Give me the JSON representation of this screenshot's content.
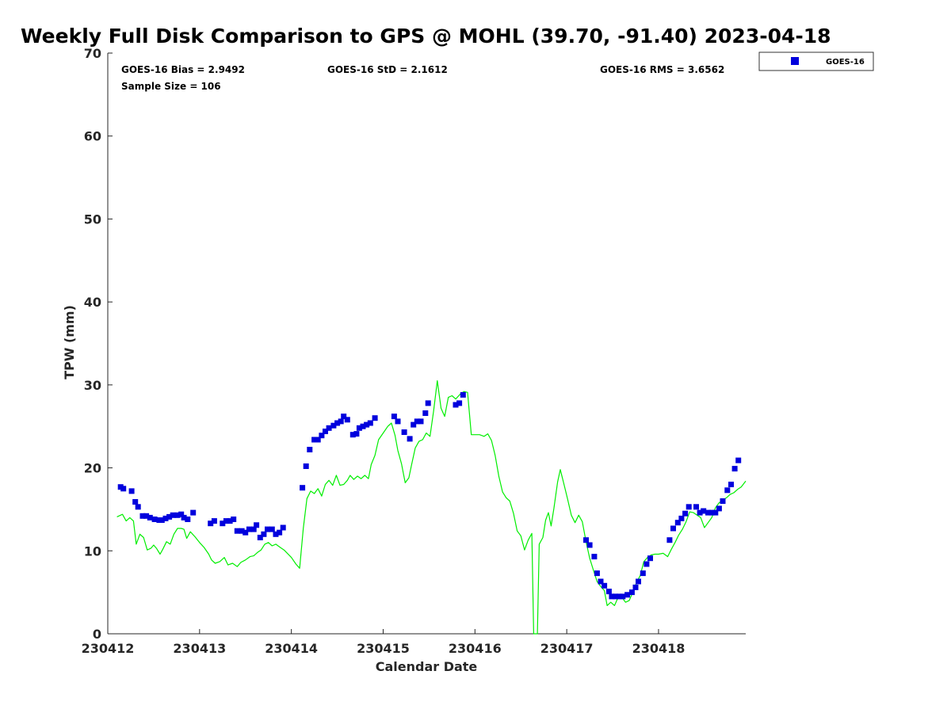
{
  "chart_data": {
    "type": "scatter",
    "title": "Weekly Full Disk Comparison to GPS @ MOHL (39.70, -91.40) 2023-04-18",
    "xlabel": "Calendar Date",
    "ylabel": "TPW (mm)",
    "xlim": [
      230412.0,
      230418.95
    ],
    "ylim": [
      0,
      70
    ],
    "x_ticks": [
      230412,
      230413,
      230414,
      230415,
      230416,
      230417,
      230418
    ],
    "x_tick_labels": [
      "230412",
      "230413",
      "230414",
      "230415",
      "230416",
      "230417",
      "230418"
    ],
    "y_ticks": [
      0,
      10,
      20,
      30,
      40,
      50,
      60,
      70
    ],
    "y_tick_labels": [
      "0",
      "10",
      "20",
      "30",
      "40",
      "50",
      "60",
      "70"
    ],
    "grid": false,
    "legend_position": "top-right",
    "stats": {
      "bias": "GOES-16 Bias = 2.9492",
      "std": "GOES-16 StD = 2.1612",
      "rms": "GOES-16 RMS = 3.6562",
      "sample": "Sample Size = 106"
    },
    "series": [
      {
        "name": "GOES-16",
        "marker": "square",
        "color": "#0000dd",
        "points": [
          [
            230412.14,
            17.7
          ],
          [
            230412.17,
            17.5
          ],
          [
            230412.26,
            17.2
          ],
          [
            230412.3,
            15.9
          ],
          [
            230412.33,
            15.3
          ],
          [
            230412.38,
            14.2
          ],
          [
            230412.42,
            14.2
          ],
          [
            230412.46,
            14.0
          ],
          [
            230412.51,
            13.8
          ],
          [
            230412.56,
            13.7
          ],
          [
            230412.59,
            13.7
          ],
          [
            230412.63,
            13.9
          ],
          [
            230412.67,
            14.1
          ],
          [
            230412.71,
            14.3
          ],
          [
            230412.76,
            14.3
          ],
          [
            230412.8,
            14.4
          ],
          [
            230412.83,
            14.0
          ],
          [
            230412.87,
            13.8
          ],
          [
            230412.93,
            14.6
          ],
          [
            230413.12,
            13.3
          ],
          [
            230413.16,
            13.6
          ],
          [
            230413.25,
            13.3
          ],
          [
            230413.29,
            13.6
          ],
          [
            230413.33,
            13.6
          ],
          [
            230413.37,
            13.8
          ],
          [
            230413.41,
            12.4
          ],
          [
            230413.46,
            12.4
          ],
          [
            230413.5,
            12.2
          ],
          [
            230413.54,
            12.6
          ],
          [
            230413.59,
            12.6
          ],
          [
            230413.62,
            13.1
          ],
          [
            230413.66,
            11.6
          ],
          [
            230413.7,
            12.0
          ],
          [
            230413.74,
            12.6
          ],
          [
            230413.79,
            12.6
          ],
          [
            230413.83,
            12.0
          ],
          [
            230413.87,
            12.2
          ],
          [
            230413.91,
            12.8
          ],
          [
            230414.12,
            17.6
          ],
          [
            230414.16,
            20.2
          ],
          [
            230414.2,
            22.2
          ],
          [
            230414.25,
            23.4
          ],
          [
            230414.29,
            23.4
          ],
          [
            230414.33,
            23.9
          ],
          [
            230414.37,
            24.4
          ],
          [
            230414.41,
            24.8
          ],
          [
            230414.46,
            25.1
          ],
          [
            230414.5,
            25.4
          ],
          [
            230414.54,
            25.6
          ],
          [
            230414.57,
            26.2
          ],
          [
            230414.61,
            25.8
          ],
          [
            230414.67,
            24.0
          ],
          [
            230414.71,
            24.1
          ],
          [
            230414.74,
            24.8
          ],
          [
            230414.78,
            25.0
          ],
          [
            230414.82,
            25.2
          ],
          [
            230414.86,
            25.4
          ],
          [
            230414.91,
            26.0
          ],
          [
            230415.12,
            26.2
          ],
          [
            230415.16,
            25.6
          ],
          [
            230415.23,
            24.3
          ],
          [
            230415.29,
            23.5
          ],
          [
            230415.33,
            25.2
          ],
          [
            230415.37,
            25.6
          ],
          [
            230415.41,
            25.6
          ],
          [
            230415.46,
            26.6
          ],
          [
            230415.49,
            27.8
          ],
          [
            230415.79,
            27.6
          ],
          [
            230415.83,
            27.8
          ],
          [
            230415.87,
            28.8
          ],
          [
            230417.21,
            11.3
          ],
          [
            230417.25,
            10.7
          ],
          [
            230417.3,
            9.3
          ],
          [
            230417.33,
            7.3
          ],
          [
            230417.37,
            6.3
          ],
          [
            230417.41,
            5.8
          ],
          [
            230417.46,
            5.1
          ],
          [
            230417.49,
            4.5
          ],
          [
            230417.53,
            4.5
          ],
          [
            230417.57,
            4.5
          ],
          [
            230417.61,
            4.5
          ],
          [
            230417.66,
            4.7
          ],
          [
            230417.71,
            5.0
          ],
          [
            230417.75,
            5.6
          ],
          [
            230417.78,
            6.3
          ],
          [
            230417.83,
            7.3
          ],
          [
            230417.87,
            8.4
          ],
          [
            230417.91,
            9.1
          ],
          [
            230418.12,
            11.3
          ],
          [
            230418.16,
            12.7
          ],
          [
            230418.21,
            13.4
          ],
          [
            230418.25,
            13.9
          ],
          [
            230418.29,
            14.5
          ],
          [
            230418.33,
            15.3
          ],
          [
            230418.41,
            15.3
          ],
          [
            230418.45,
            14.6
          ],
          [
            230418.49,
            14.8
          ],
          [
            230418.54,
            14.6
          ],
          [
            230418.58,
            14.6
          ],
          [
            230418.62,
            14.6
          ],
          [
            230418.66,
            15.1
          ],
          [
            230418.7,
            16.0
          ],
          [
            230418.75,
            17.3
          ],
          [
            230418.79,
            18.0
          ],
          [
            230418.83,
            19.9
          ],
          [
            230418.87,
            20.9
          ]
        ]
      },
      {
        "type": "line",
        "color": "#00ee00",
        "points": [
          [
            230412.1,
            14.1
          ],
          [
            230412.16,
            14.4
          ],
          [
            230412.2,
            13.6
          ],
          [
            230412.24,
            14.0
          ],
          [
            230412.28,
            13.6
          ],
          [
            230412.31,
            10.8
          ],
          [
            230412.35,
            12.0
          ],
          [
            230412.39,
            11.6
          ],
          [
            230412.43,
            10.1
          ],
          [
            230412.47,
            10.3
          ],
          [
            230412.5,
            10.7
          ],
          [
            230412.53,
            10.3
          ],
          [
            230412.57,
            9.6
          ],
          [
            230412.6,
            10.2
          ],
          [
            230412.64,
            11.1
          ],
          [
            230412.68,
            10.8
          ],
          [
            230412.72,
            12.0
          ],
          [
            230412.76,
            12.7
          ],
          [
            230412.8,
            12.7
          ],
          [
            230412.83,
            12.6
          ],
          [
            230412.86,
            11.5
          ],
          [
            230412.9,
            12.3
          ],
          [
            230412.95,
            11.7
          ],
          [
            230413.0,
            11.0
          ],
          [
            230413.05,
            10.4
          ],
          [
            230413.1,
            9.6
          ],
          [
            230413.13,
            8.9
          ],
          [
            230413.17,
            8.5
          ],
          [
            230413.22,
            8.7
          ],
          [
            230413.27,
            9.2
          ],
          [
            230413.31,
            8.3
          ],
          [
            230413.36,
            8.5
          ],
          [
            230413.41,
            8.1
          ],
          [
            230413.45,
            8.6
          ],
          [
            230413.5,
            8.9
          ],
          [
            230413.55,
            9.3
          ],
          [
            230413.59,
            9.4
          ],
          [
            230413.63,
            9.8
          ],
          [
            230413.67,
            10.1
          ],
          [
            230413.71,
            10.8
          ],
          [
            230413.75,
            11.0
          ],
          [
            230413.79,
            10.6
          ],
          [
            230413.83,
            10.8
          ],
          [
            230413.88,
            10.4
          ],
          [
            230413.92,
            10.1
          ],
          [
            230414.0,
            9.2
          ],
          [
            230414.05,
            8.4
          ],
          [
            230414.09,
            7.9
          ],
          [
            230414.13,
            12.7
          ],
          [
            230414.17,
            16.3
          ],
          [
            230414.21,
            17.2
          ],
          [
            230414.25,
            16.9
          ],
          [
            230414.29,
            17.5
          ],
          [
            230414.33,
            16.6
          ],
          [
            230414.37,
            18.0
          ],
          [
            230414.41,
            18.5
          ],
          [
            230414.45,
            17.9
          ],
          [
            230414.49,
            19.1
          ],
          [
            230414.53,
            17.9
          ],
          [
            230414.57,
            18.0
          ],
          [
            230414.61,
            18.5
          ],
          [
            230414.64,
            19.1
          ],
          [
            230414.68,
            18.6
          ],
          [
            230414.72,
            19.0
          ],
          [
            230414.76,
            18.7
          ],
          [
            230414.8,
            19.1
          ],
          [
            230414.84,
            18.7
          ],
          [
            230414.87,
            20.4
          ],
          [
            230414.91,
            21.5
          ],
          [
            230414.95,
            23.4
          ],
          [
            230415.0,
            24.2
          ],
          [
            230415.05,
            25.0
          ],
          [
            230415.09,
            25.4
          ],
          [
            230415.13,
            23.9
          ],
          [
            230415.16,
            22.1
          ],
          [
            230415.2,
            20.5
          ],
          [
            230415.24,
            18.2
          ],
          [
            230415.28,
            18.8
          ],
          [
            230415.31,
            20.4
          ],
          [
            230415.35,
            22.4
          ],
          [
            230415.39,
            23.2
          ],
          [
            230415.43,
            23.4
          ],
          [
            230415.47,
            24.2
          ],
          [
            230415.51,
            23.8
          ],
          [
            230415.55,
            26.9
          ],
          [
            230415.59,
            30.5
          ],
          [
            230415.63,
            27.2
          ],
          [
            230415.67,
            26.2
          ],
          [
            230415.71,
            28.5
          ],
          [
            230415.75,
            28.7
          ],
          [
            230415.79,
            28.3
          ],
          [
            230415.84,
            28.9
          ],
          [
            230415.88,
            29.2
          ],
          [
            230415.92,
            29.1
          ],
          [
            230415.96,
            24.0
          ],
          [
            230416.0,
            24.0
          ],
          [
            230416.05,
            24.0
          ],
          [
            230416.1,
            23.8
          ],
          [
            230416.14,
            24.1
          ],
          [
            230416.18,
            23.3
          ],
          [
            230416.22,
            21.5
          ],
          [
            230416.26,
            19.0
          ],
          [
            230416.3,
            17.1
          ],
          [
            230416.34,
            16.4
          ],
          [
            230416.38,
            16.0
          ],
          [
            230416.42,
            14.5
          ],
          [
            230416.46,
            12.4
          ],
          [
            230416.5,
            11.8
          ],
          [
            230416.54,
            10.1
          ],
          [
            230416.58,
            11.3
          ],
          [
            230416.62,
            12.1
          ],
          [
            230416.64,
            0.0
          ],
          [
            230416.66,
            0.0
          ],
          [
            230416.68,
            0.0
          ],
          [
            230416.7,
            10.8
          ],
          [
            230416.74,
            11.6
          ],
          [
            230416.77,
            13.7
          ],
          [
            230416.8,
            14.6
          ],
          [
            230416.83,
            13.0
          ],
          [
            230416.86,
            15.1
          ],
          [
            230416.9,
            18.3
          ],
          [
            230416.93,
            19.8
          ],
          [
            230416.97,
            18.0
          ],
          [
            230417.01,
            16.2
          ],
          [
            230417.05,
            14.3
          ],
          [
            230417.09,
            13.4
          ],
          [
            230417.13,
            14.3
          ],
          [
            230417.17,
            13.5
          ],
          [
            230417.21,
            11.1
          ],
          [
            230417.25,
            9.1
          ],
          [
            230417.29,
            7.7
          ],
          [
            230417.33,
            6.3
          ],
          [
            230417.37,
            5.7
          ],
          [
            230417.41,
            5.2
          ],
          [
            230417.44,
            3.4
          ],
          [
            230417.48,
            3.8
          ],
          [
            230417.52,
            3.4
          ],
          [
            230417.56,
            4.4
          ],
          [
            230417.6,
            4.4
          ],
          [
            230417.64,
            3.8
          ],
          [
            230417.68,
            4.0
          ],
          [
            230417.72,
            5.0
          ],
          [
            230417.76,
            6.2
          ],
          [
            230417.8,
            7.0
          ],
          [
            230417.84,
            8.7
          ],
          [
            230417.88,
            9.2
          ],
          [
            230417.92,
            9.5
          ],
          [
            230417.96,
            9.6
          ],
          [
            230418.0,
            9.6
          ],
          [
            230418.05,
            9.7
          ],
          [
            230418.1,
            9.3
          ],
          [
            230418.14,
            10.2
          ],
          [
            230418.18,
            11.0
          ],
          [
            230418.22,
            11.9
          ],
          [
            230418.26,
            12.6
          ],
          [
            230418.3,
            13.5
          ],
          [
            230418.34,
            14.7
          ],
          [
            230418.38,
            14.6
          ],
          [
            230418.42,
            14.3
          ],
          [
            230418.46,
            14.0
          ],
          [
            230418.5,
            12.8
          ],
          [
            230418.54,
            13.4
          ],
          [
            230418.58,
            14.0
          ],
          [
            230418.62,
            15.2
          ],
          [
            230418.66,
            15.8
          ],
          [
            230418.7,
            16.1
          ],
          [
            230418.74,
            16.4
          ],
          [
            230418.78,
            16.8
          ],
          [
            230418.82,
            17.0
          ],
          [
            230418.86,
            17.4
          ],
          [
            230418.9,
            17.7
          ],
          [
            230418.95,
            18.4
          ]
        ]
      }
    ]
  }
}
